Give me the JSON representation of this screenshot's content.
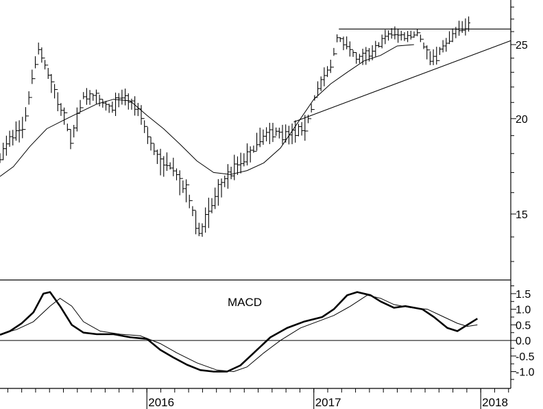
{
  "chart_data": [
    {
      "type": "ohlc",
      "price_axis": {
        "ylim": [
          12.5,
          28.6
        ],
        "ticks": [
          {
            "value": 15,
            "label": "15"
          },
          {
            "value": 20,
            "label": "20"
          },
          {
            "value": 25,
            "label": "25"
          }
        ],
        "scale": "log"
      },
      "x_axis": {
        "start": 2015.12,
        "end": 2018.18,
        "year_labels": [
          {
            "value": 2016.0,
            "label": "2016"
          },
          {
            "value": 2017.0,
            "label": "2017"
          },
          {
            "value": 2018.0,
            "label": "2018"
          }
        ]
      },
      "bar_anchors": [
        [
          2015.12,
          17.7
        ],
        [
          2015.18,
          18.9
        ],
        [
          2015.26,
          19.4
        ],
        [
          2015.35,
          24.8
        ],
        [
          2015.4,
          23.2
        ],
        [
          2015.47,
          21.0
        ],
        [
          2015.55,
          18.7
        ],
        [
          2015.62,
          21.5
        ],
        [
          2015.7,
          21.2
        ],
        [
          2015.78,
          20.6
        ],
        [
          2015.86,
          21.4
        ],
        [
          2015.95,
          20.6
        ],
        [
          2016.01,
          18.9
        ],
        [
          2016.07,
          17.6
        ],
        [
          2016.15,
          17.3
        ],
        [
          2016.25,
          15.7
        ],
        [
          2016.32,
          14.1
        ],
        [
          2016.4,
          15.6
        ],
        [
          2016.48,
          16.8
        ],
        [
          2016.55,
          17.5
        ],
        [
          2016.62,
          18.0
        ],
        [
          2016.7,
          19.1
        ],
        [
          2016.78,
          19.2
        ],
        [
          2016.88,
          19.2
        ],
        [
          2016.95,
          19.5
        ],
        [
          2017.02,
          21.8
        ],
        [
          2017.1,
          23.4
        ],
        [
          2017.14,
          25.5
        ],
        [
          2017.2,
          25.1
        ],
        [
          2017.26,
          23.9
        ],
        [
          2017.32,
          24.2
        ],
        [
          2017.4,
          25.1
        ],
        [
          2017.46,
          25.9
        ],
        [
          2017.55,
          25.6
        ],
        [
          2017.62,
          25.9
        ],
        [
          2017.7,
          23.9
        ],
        [
          2017.78,
          24.9
        ],
        [
          2017.86,
          26.2
        ],
        [
          2017.94,
          26.6
        ]
      ],
      "bar_spread": 0.5,
      "moving_average": [
        [
          2015.12,
          16.8
        ],
        [
          2015.2,
          17.3
        ],
        [
          2015.3,
          18.4
        ],
        [
          2015.4,
          19.4
        ],
        [
          2015.5,
          19.9
        ],
        [
          2015.6,
          20.4
        ],
        [
          2015.7,
          20.9
        ],
        [
          2015.8,
          21.2
        ],
        [
          2015.9,
          21.1
        ],
        [
          2016.0,
          20.2
        ],
        [
          2016.1,
          19.4
        ],
        [
          2016.2,
          18.5
        ],
        [
          2016.3,
          17.6
        ],
        [
          2016.4,
          17.0
        ],
        [
          2016.5,
          16.9
        ],
        [
          2016.6,
          17.1
        ],
        [
          2016.7,
          17.5
        ],
        [
          2016.8,
          18.3
        ],
        [
          2016.9,
          19.7
        ],
        [
          2017.0,
          21.2
        ],
        [
          2017.1,
          22.2
        ],
        [
          2017.2,
          23.0
        ],
        [
          2017.3,
          23.8
        ],
        [
          2017.4,
          24.2
        ],
        [
          2017.5,
          24.9
        ],
        [
          2017.6,
          25.0
        ]
      ],
      "trendlines": [
        {
          "from": [
            2016.88,
            19.8
          ],
          "to": [
            2018.18,
            25.3
          ]
        },
        {
          "from": [
            2017.15,
            26.2
          ],
          "to": [
            2018.18,
            26.2
          ]
        }
      ],
      "grid": false
    },
    {
      "type": "line",
      "title": "MACD",
      "ylim": [
        -1.45,
        1.85
      ],
      "ticks": [
        {
          "value": 1.5,
          "label": "1.5"
        },
        {
          "value": 1.0,
          "label": "1.0"
        },
        {
          "value": 0.5,
          "label": "0.5"
        },
        {
          "value": 0.0,
          "label": "0.0"
        },
        {
          "value": -0.5,
          "label": "-0.5"
        },
        {
          "value": -1.0,
          "label": "-1.0"
        }
      ],
      "zero_line": 0,
      "series": [
        {
          "role": "macd",
          "points": [
            [
              2015.12,
              0.18
            ],
            [
              2015.18,
              0.3
            ],
            [
              2015.25,
              0.55
            ],
            [
              2015.32,
              0.9
            ],
            [
              2015.38,
              1.5
            ],
            [
              2015.42,
              1.55
            ],
            [
              2015.48,
              1.1
            ],
            [
              2015.55,
              0.5
            ],
            [
              2015.62,
              0.25
            ],
            [
              2015.7,
              0.2
            ],
            [
              2015.8,
              0.2
            ],
            [
              2015.9,
              0.1
            ],
            [
              2016.0,
              0.05
            ],
            [
              2016.08,
              -0.3
            ],
            [
              2016.16,
              -0.55
            ],
            [
              2016.24,
              -0.78
            ],
            [
              2016.32,
              -0.95
            ],
            [
              2016.4,
              -1.0
            ],
            [
              2016.48,
              -1.0
            ],
            [
              2016.56,
              -0.8
            ],
            [
              2016.64,
              -0.4
            ],
            [
              2016.74,
              0.1
            ],
            [
              2016.84,
              0.4
            ],
            [
              2016.94,
              0.6
            ],
            [
              2017.05,
              0.75
            ],
            [
              2017.12,
              1.0
            ],
            [
              2017.2,
              1.45
            ],
            [
              2017.26,
              1.55
            ],
            [
              2017.34,
              1.45
            ],
            [
              2017.4,
              1.25
            ],
            [
              2017.48,
              1.05
            ],
            [
              2017.55,
              1.1
            ],
            [
              2017.65,
              1.0
            ],
            [
              2017.72,
              0.75
            ],
            [
              2017.8,
              0.4
            ],
            [
              2017.86,
              0.3
            ],
            [
              2017.92,
              0.5
            ],
            [
              2017.98,
              0.7
            ]
          ],
          "stroke_width": 2.6
        },
        {
          "role": "signal",
          "points": [
            [
              2015.12,
              0.2
            ],
            [
              2015.22,
              0.35
            ],
            [
              2015.32,
              0.6
            ],
            [
              2015.42,
              1.1
            ],
            [
              2015.48,
              1.35
            ],
            [
              2015.55,
              1.1
            ],
            [
              2015.62,
              0.6
            ],
            [
              2015.72,
              0.3
            ],
            [
              2015.84,
              0.2
            ],
            [
              2015.96,
              0.15
            ],
            [
              2016.08,
              -0.1
            ],
            [
              2016.18,
              -0.4
            ],
            [
              2016.3,
              -0.72
            ],
            [
              2016.42,
              -0.95
            ],
            [
              2016.52,
              -1.0
            ],
            [
              2016.6,
              -0.85
            ],
            [
              2016.7,
              -0.4
            ],
            [
              2016.8,
              0.0
            ],
            [
              2016.92,
              0.4
            ],
            [
              2017.02,
              0.6
            ],
            [
              2017.12,
              0.8
            ],
            [
              2017.22,
              1.1
            ],
            [
              2017.32,
              1.45
            ],
            [
              2017.4,
              1.35
            ],
            [
              2017.48,
              1.15
            ],
            [
              2017.58,
              1.05
            ],
            [
              2017.68,
              1.0
            ],
            [
              2017.78,
              0.75
            ],
            [
              2017.86,
              0.55
            ],
            [
              2017.92,
              0.45
            ],
            [
              2017.98,
              0.5
            ]
          ],
          "stroke_width": 1
        }
      ],
      "grid": false
    }
  ]
}
